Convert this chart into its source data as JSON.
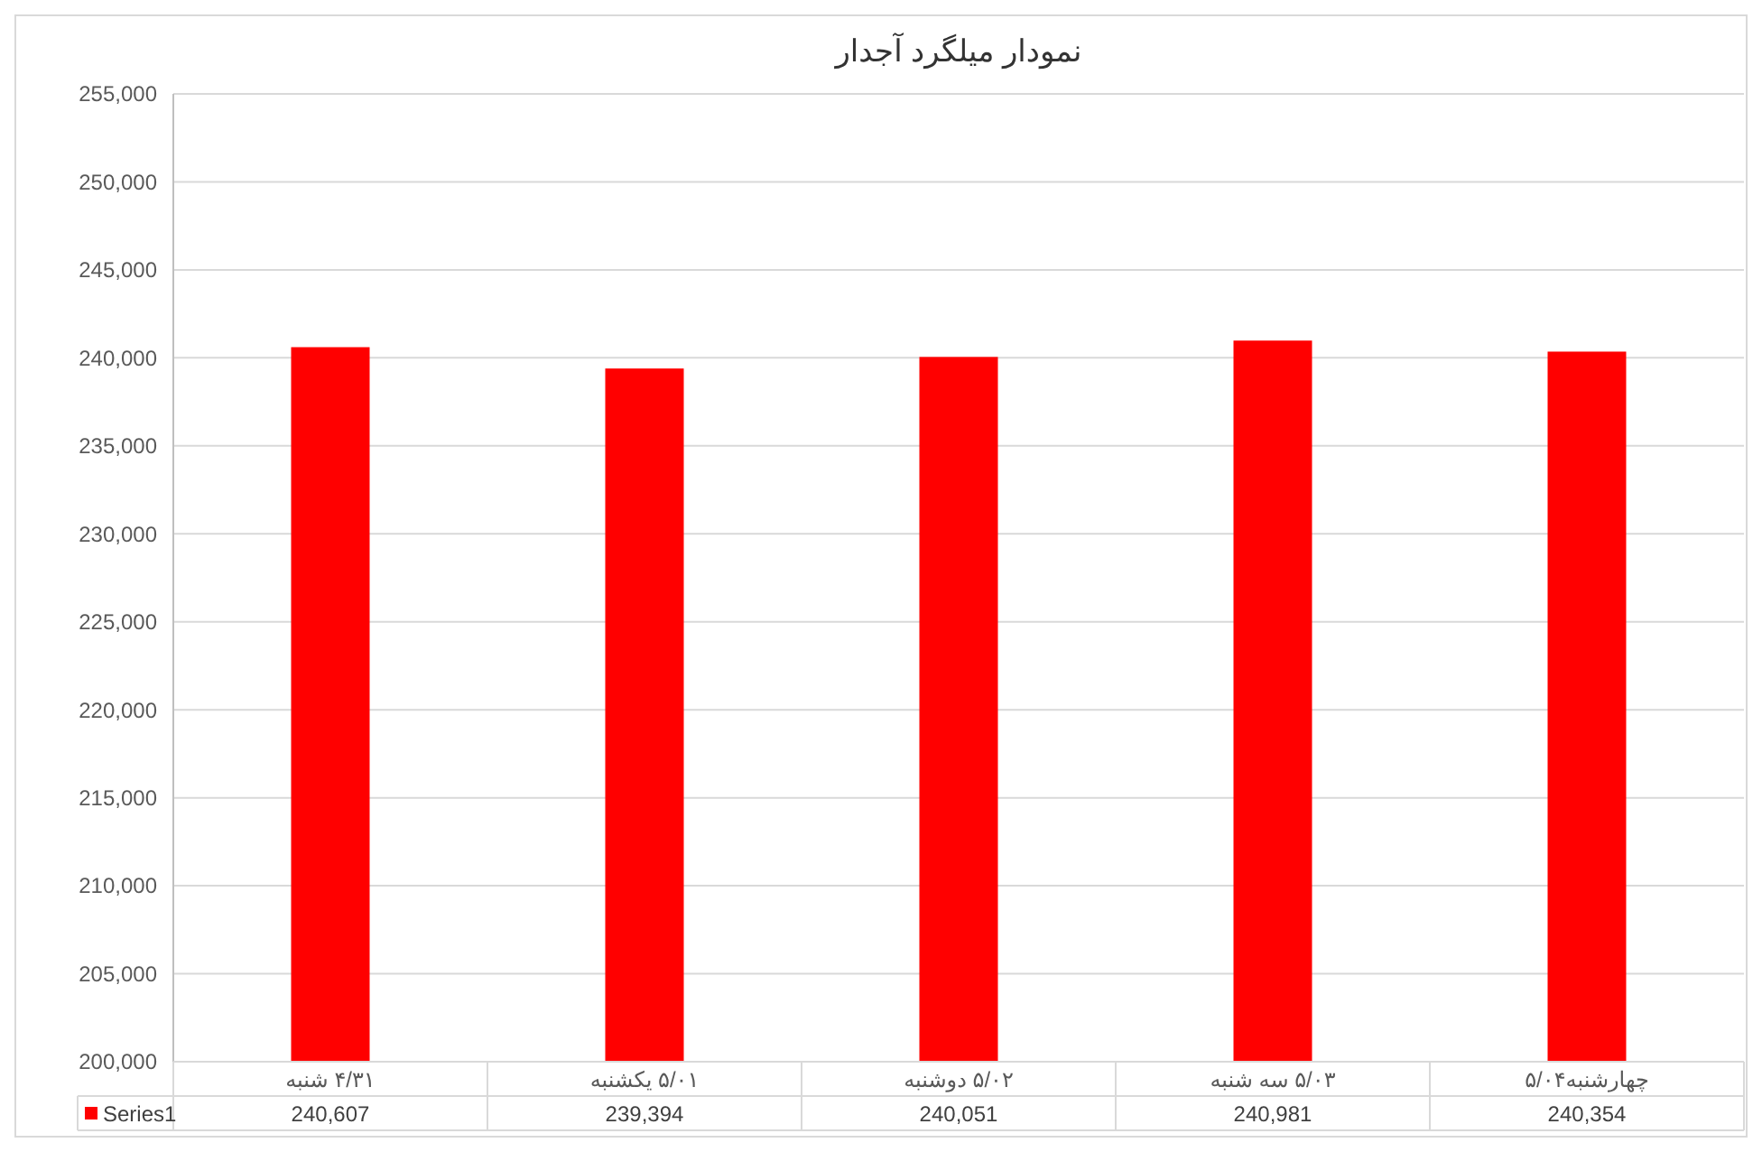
{
  "chart_data": {
    "type": "bar",
    "title": "نمودار میلگرد آجدار",
    "categories": [
      "۴/۳۱ شنبه",
      "۵/۰۱ یکشنبه",
      "۵/۰۲ دوشنبه",
      "۵/۰۳ سه شنبه",
      "چهارشنبه۵/۰۴"
    ],
    "series": [
      {
        "name": "Series1",
        "color": "#ff0000",
        "values": [
          240607,
          239394,
          240051,
          240981,
          240354
        ],
        "value_labels": [
          "240,607",
          "239,394",
          "240,051",
          "240,981",
          "240,354"
        ]
      }
    ],
    "ylim": [
      200000,
      255000
    ],
    "yticks": [
      {
        "value": 200000,
        "label": "200,000"
      },
      {
        "value": 205000,
        "label": "205,000"
      },
      {
        "value": 210000,
        "label": "210,000"
      },
      {
        "value": 215000,
        "label": "215,000"
      },
      {
        "value": 220000,
        "label": "220,000"
      },
      {
        "value": 225000,
        "label": "225,000"
      },
      {
        "value": 230000,
        "label": "230,000"
      },
      {
        "value": 235000,
        "label": "235,000"
      },
      {
        "value": 240000,
        "label": "240,000"
      },
      {
        "value": 245000,
        "label": "245,000"
      },
      {
        "value": 250000,
        "label": "250,000"
      },
      {
        "value": 255000,
        "label": "255,000"
      }
    ],
    "grid": true,
    "legend": "bottom"
  }
}
